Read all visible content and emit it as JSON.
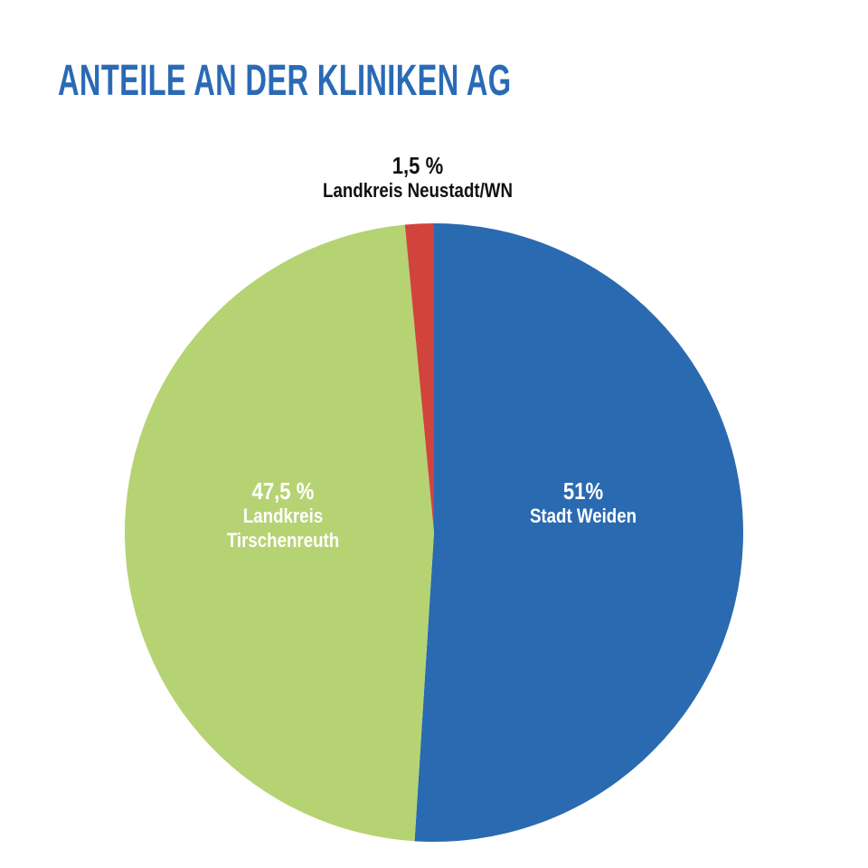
{
  "chart_data": {
    "type": "pie",
    "title": "ANTEILE AN DER KLINIKEN AG",
    "slices": [
      {
        "label": "Stadt Weiden",
        "label_lines": [
          "Stadt Weiden"
        ],
        "value": 51,
        "value_label": "51%",
        "color": "#2a6ab0"
      },
      {
        "label": "Landkreis Tirschenreuth",
        "label_lines": [
          "Landkreis",
          "Tirschenreuth"
        ],
        "value": 47.5,
        "value_label": "47,5 %",
        "color": "#b6d374"
      },
      {
        "label": "Landkreis Neustadt/WN",
        "label_lines": [
          "Landkreis Neustadt/WN"
        ],
        "value": 1.5,
        "value_label": "1,5 %",
        "color": "#d1443d"
      }
    ],
    "start_angle": "top",
    "direction": "clockwise"
  }
}
